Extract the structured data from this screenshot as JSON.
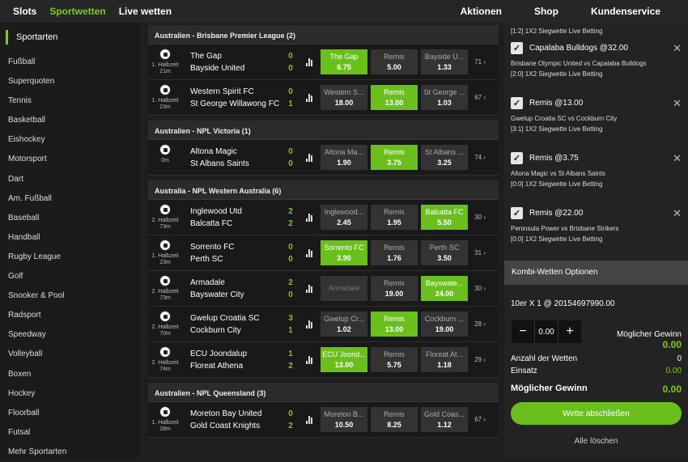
{
  "topnav": {
    "slots": "Slots",
    "sportwetten": "Sportwetten",
    "live": "Live wetten",
    "aktionen": "Aktionen",
    "shop": "Shop",
    "kundenservice": "Kundenservice",
    "accent": "#7ecb20"
  },
  "sidebar": {
    "header": "Sportarten",
    "items": [
      "Fußball",
      "Superquoten",
      "Tennis",
      "Basketball",
      "Eishockey",
      "Motorsport",
      "Dart",
      "Am. Fußball",
      "Baseball",
      "Handball",
      "Rugby League",
      "Golf",
      "Snooker & Pool",
      "Radsport",
      "Speedway",
      "Volleyball",
      "Boxen",
      "Hockey",
      "Floorball",
      "Futsal",
      "Mehr Sportarten"
    ]
  },
  "leagues": [
    {
      "name": "Australien - Brisbane Premier League (2)",
      "matches": [
        {
          "period": "1. Halbzeit",
          "time": "21m",
          "home": "The Gap",
          "away": "Bayside United",
          "hs": "0",
          "as": "0",
          "odds": [
            {
              "l": "The Gap",
              "v": "6.75",
              "s": true
            },
            {
              "l": "Remis",
              "v": "5.00",
              "s": false
            },
            {
              "l": "Bayside U...",
              "v": "1.33",
              "s": false
            }
          ],
          "more": "71"
        },
        {
          "period": "1. Halbzeit",
          "time": "23m",
          "home": "Western Spirit FC",
          "away": "St George Willawong FC",
          "hs": "0",
          "as": "1",
          "odds": [
            {
              "l": "Western S...",
              "v": "18.00",
              "s": false
            },
            {
              "l": "Remis",
              "v": "13.00",
              "s": true
            },
            {
              "l": "St George ...",
              "v": "1.03",
              "s": false
            }
          ],
          "more": "67"
        }
      ]
    },
    {
      "name": "Australien - NPL Victoria (1)",
      "matches": [
        {
          "period": "",
          "time": "0m",
          "home": "Altona Magic",
          "away": "St Albans Saints",
          "hs": "0",
          "as": "0",
          "odds": [
            {
              "l": "Altona Ma...",
              "v": "1.90",
              "s": false
            },
            {
              "l": "Remis",
              "v": "3.75",
              "s": true
            },
            {
              "l": "St Albans ...",
              "v": "3.25",
              "s": false
            }
          ],
          "more": "74"
        }
      ]
    },
    {
      "name": "Australia - NPL Western Australia (6)",
      "matches": [
        {
          "period": "2. Halbzeit",
          "time": "73m",
          "home": "Inglewood Utd",
          "away": "Balcatta FC",
          "hs": "2",
          "as": "2",
          "odds": [
            {
              "l": "Inglewood...",
              "v": "2.45",
              "s": false
            },
            {
              "l": "Remis",
              "v": "1.95",
              "s": false
            },
            {
              "l": "Balcatta FC",
              "v": "5.50",
              "s": true
            }
          ],
          "more": "30"
        },
        {
          "period": "1. Halbzeit",
          "time": "23m",
          "home": "Sorrento FC",
          "away": "Perth SC",
          "hs": "0",
          "as": "0",
          "odds": [
            {
              "l": "Sorrento FC",
              "v": "3.90",
              "s": true
            },
            {
              "l": "Remis",
              "v": "1.76",
              "s": false
            },
            {
              "l": "Perth SC",
              "v": "3.50",
              "s": false
            }
          ],
          "more": "31"
        },
        {
          "period": "2. Halbzeit",
          "time": "73m",
          "home": "Armadale",
          "away": "Bayswater City",
          "hs": "2",
          "as": "0",
          "odds": [
            {
              "l": "Armadale",
              "v": "",
              "s": false,
              "dim": true
            },
            {
              "l": "Remis",
              "v": "19.00",
              "s": false
            },
            {
              "l": "Bayswate...",
              "v": "24.00",
              "s": true
            }
          ],
          "more": "30"
        },
        {
          "period": "2. Halbzeit",
          "time": "70m",
          "home": "Gwelup Croatia SC",
          "away": "Cockburn City",
          "hs": "3",
          "as": "1",
          "odds": [
            {
              "l": "Gwelup Cr...",
              "v": "1.02",
              "s": false
            },
            {
              "l": "Remis",
              "v": "13.00",
              "s": true
            },
            {
              "l": "Cockburn ...",
              "v": "19.00",
              "s": false
            }
          ],
          "more": "28"
        },
        {
          "period": "2. Halbzeit",
          "time": "74m",
          "home": "ECU Joondalup",
          "away": "Floreat Athena",
          "hs": "1",
          "as": "2",
          "odds": [
            {
              "l": "ECU Joond...",
              "v": "13.00",
              "s": true
            },
            {
              "l": "Remis",
              "v": "5.75",
              "s": false
            },
            {
              "l": "Floreat At...",
              "v": "1.18",
              "s": false
            }
          ],
          "more": "29"
        }
      ]
    },
    {
      "name": "Australien - NPL Queensland (3)",
      "matches": [
        {
          "period": "1. Halbzeit",
          "time": "28m",
          "home": "Moreton Bay United",
          "away": "Gold Coast Knights",
          "hs": "0",
          "as": "2",
          "odds": [
            {
              "l": "Moreton B...",
              "v": "10.50",
              "s": false
            },
            {
              "l": "Remis",
              "v": "8.25",
              "s": false
            },
            {
              "l": "Gold Coas...",
              "v": "1.12",
              "s": false
            }
          ],
          "more": "67"
        }
      ]
    }
  ],
  "betslip": {
    "top_text": "[1:2] 1X2 Siegwette Live Betting",
    "bets": [
      {
        "title": "Capalaba Bulldogs @32.00",
        "match": "Brisbane Olympic United vs Capalaba Bulldogs",
        "info": "[2:0] 1X2 Siegwette Live Betting"
      },
      {
        "title": "Remis @13.00",
        "match": "Gwelup Croatia SC vs Cockburn City",
        "info": "[3:1] 1X2 Siegwette Live Betting"
      },
      {
        "title": "Remis @3.75",
        "match": "Altona Magic vs St Albans Saints",
        "info": "[0:0] 1X2 Siegwette Live Betting"
      },
      {
        "title": "Remis @22.00",
        "match": "Peninsula Power vs Brisbane Strikers",
        "info": "[0:0] 1X2 Siegwette Live Betting"
      }
    ],
    "kombi_label": "Kombi-Wetten Optionen",
    "system_text": "10er X 1 @ 20154697990.00",
    "stake_value": "0.00",
    "possible_win_label": "Möglicher Gewinn",
    "possible_win_value": "0.00",
    "count_label": "Anzahl der Wetten",
    "count_value": "0",
    "einsatz_label": "Einsatz",
    "einsatz_value": "0.00",
    "total_win_label": "Möglicher Gewinn",
    "total_win_value": "0.00",
    "submit_label": "Wette abschließen",
    "clear_label": "Alle löschen"
  }
}
